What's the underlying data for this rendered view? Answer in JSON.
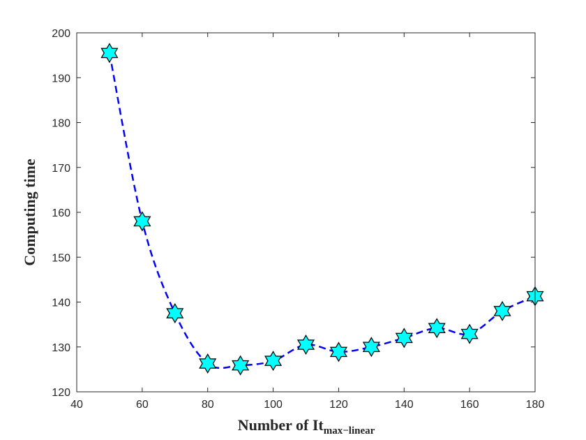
{
  "chart_data": {
    "type": "line",
    "xlabel": "Number of It",
    "xlabel_subscript": "max−linear",
    "ylabel": "Computing time",
    "xlim": [
      40,
      180
    ],
    "ylim": [
      120,
      200
    ],
    "x_ticks": [
      40,
      60,
      80,
      100,
      120,
      140,
      160,
      180
    ],
    "y_ticks": [
      120,
      130,
      140,
      150,
      160,
      170,
      180,
      190,
      200
    ],
    "grid": false,
    "series": [
      {
        "x": [
          50,
          60,
          70,
          80,
          90,
          100,
          110,
          120,
          130,
          140,
          150,
          160,
          170,
          180
        ],
        "values": [
          195.5,
          158,
          137.5,
          126.3,
          125.9,
          126.9,
          130.5,
          128.9,
          130,
          132,
          134.2,
          132.9,
          138,
          141.3
        ],
        "line_style": "dashed",
        "line_color": "#0000ff",
        "marker": "hexagram",
        "marker_face_color": "#00ffff",
        "marker_edge_color": "#000000"
      }
    ]
  }
}
